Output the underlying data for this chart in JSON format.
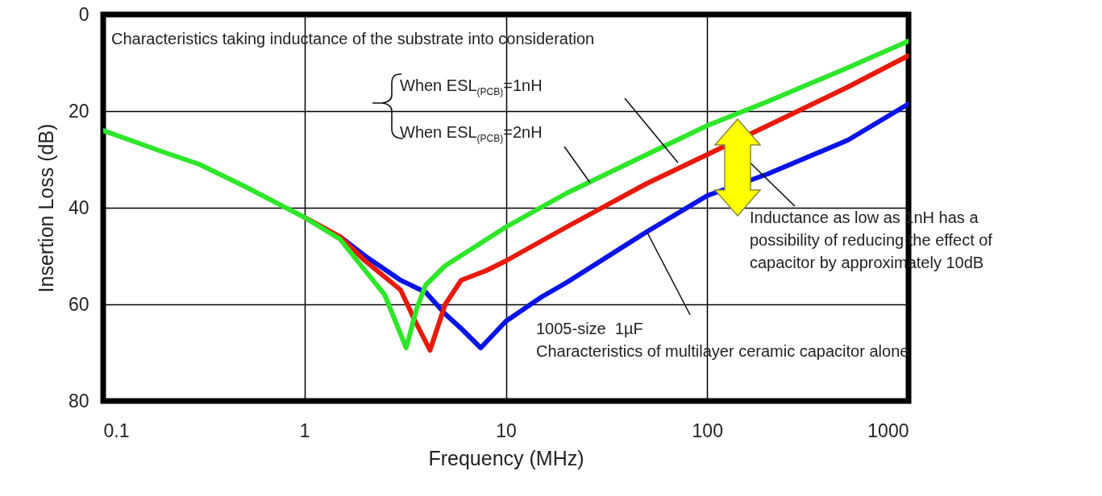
{
  "chart_data": {
    "type": "line",
    "xlabel": "Frequency (MHz)",
    "ylabel": "Insertion Loss (dB)",
    "log": "x",
    "xlim": [
      0.1,
      1000
    ],
    "xticks": [
      0.1,
      1,
      10,
      100,
      1000
    ],
    "ylim": [
      80,
      0
    ],
    "yticks": [
      0,
      20,
      40,
      60,
      80
    ],
    "grid": true,
    "line_style": "solid",
    "marker": "none",
    "series": [
      {
        "color": "#0a14e6",
        "x": [
          1.5,
          2,
          3,
          4,
          5,
          6,
          7.5,
          10,
          15,
          20,
          50,
          100,
          200,
          500,
          1000
        ],
        "values": [
          46,
          50,
          55,
          57.5,
          62,
          65,
          69,
          63.5,
          58.5,
          55.5,
          45,
          37.5,
          33,
          26,
          18.5
        ]
      },
      {
        "color": "#e81a0c",
        "x": [
          1,
          1.5,
          2,
          3,
          3.5,
          4.2,
          5,
          6,
          8,
          10,
          20,
          50,
          100,
          200,
          500,
          1000
        ],
        "values": [
          42,
          46,
          51,
          57,
          63,
          69.5,
          60,
          55,
          53,
          51,
          44,
          35,
          29,
          23,
          15,
          8.5
        ]
      },
      {
        "color": "#2ee62a",
        "x": [
          0.1,
          0.2,
          0.3,
          0.5,
          1,
          1.5,
          2,
          2.5,
          3.2,
          3.6,
          4,
          5,
          10,
          20,
          50,
          100,
          200,
          500,
          1000
        ],
        "values": [
          24,
          28.5,
          31,
          35.5,
          42,
          46.5,
          53,
          58,
          69,
          61,
          56,
          52,
          44,
          37,
          29,
          23,
          18,
          11,
          5.5
        ]
      }
    ],
    "annotations": [
      "Characteristics taking inductance of the substrate into consideration",
      "When ESL$_{(PCB)}$=1nH",
      "When ESL$_{(PCB)}$=2nH",
      "Inductance as low as 1nH has a\npossibility of reducing the effect of\ncapacitor by approximately 10dB",
      "1005-size  1µF\nCharacteristics of multilayer ceramic capacitor alone"
    ]
  }
}
